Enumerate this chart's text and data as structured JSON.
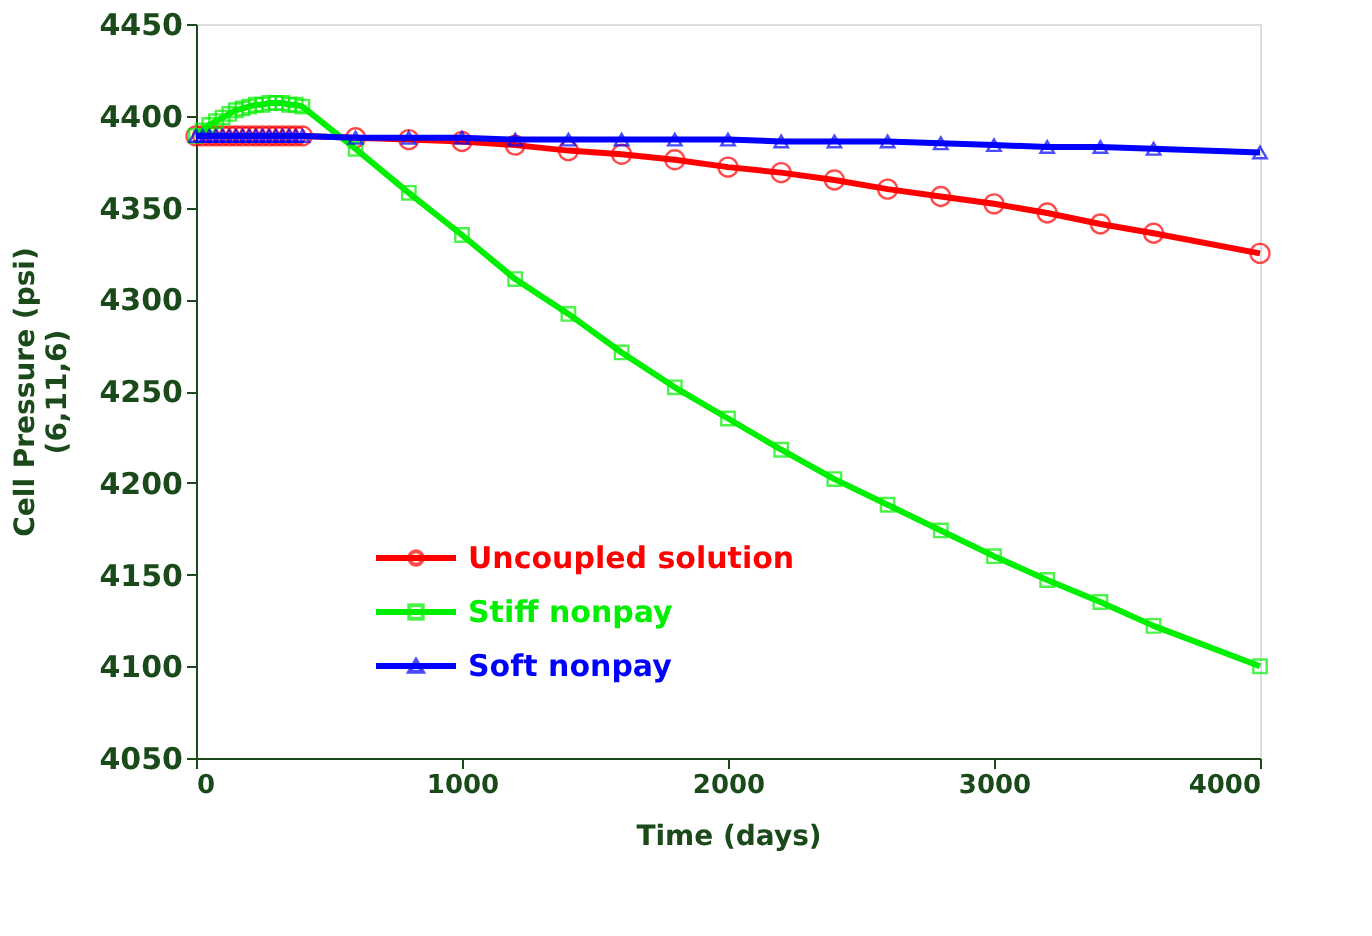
{
  "chart_data": {
    "type": "line",
    "xlabel": "Time (days)",
    "ylabel": "Cell Pressure (psi)\n(6,11,6)",
    "xlim": [
      0,
      4000
    ],
    "ylim": [
      4050,
      4450
    ],
    "xticks": [
      0,
      1000,
      2000,
      3000,
      4000
    ],
    "yticks": [
      4050,
      4100,
      4150,
      4200,
      4250,
      4300,
      4350,
      4400,
      4450
    ],
    "grid": false,
    "legend": "bottom left",
    "line_style": "solid",
    "series": [
      {
        "name": "Uncoupled solution",
        "color": "#ff0000",
        "marker": "circle",
        "x": [
          0,
          25,
          50,
          75,
          100,
          125,
          150,
          175,
          200,
          225,
          250,
          275,
          300,
          325,
          350,
          375,
          400,
          600,
          800,
          1000,
          1200,
          1400,
          1600,
          1800,
          2000,
          2200,
          2400,
          2600,
          2800,
          3000,
          3200,
          3400,
          3600,
          4000
        ],
        "values": [
          4389,
          4389,
          4389,
          4389,
          4389,
          4389,
          4389,
          4389,
          4389,
          4389,
          4389,
          4389,
          4389,
          4389,
          4389,
          4389,
          4389,
          4388,
          4387,
          4386,
          4384,
          4381,
          4379,
          4376,
          4372,
          4369,
          4365,
          4360,
          4356,
          4352,
          4347,
          4341,
          4336,
          4325
        ]
      },
      {
        "name": "Stiff nonpay",
        "color": "#00ee00",
        "marker": "square",
        "x": [
          0,
          25,
          50,
          75,
          100,
          125,
          150,
          175,
          200,
          225,
          250,
          275,
          300,
          325,
          350,
          375,
          400,
          600,
          800,
          1000,
          1200,
          1400,
          1600,
          1800,
          2000,
          2200,
          2400,
          2600,
          2800,
          3000,
          3200,
          3400,
          3600,
          4000
        ],
        "values": [
          4389,
          4392,
          4395,
          4397,
          4399,
          4401,
          4403,
          4404,
          4405,
          4406,
          4406,
          4407,
          4407,
          4407,
          4406,
          4406,
          4405,
          4382,
          4358,
          4335,
          4311,
          4292,
          4271,
          4252,
          4235,
          4218,
          4202,
          4188,
          4174,
          4160,
          4147,
          4135,
          4122,
          4100
        ]
      },
      {
        "name": "Soft nonpay",
        "color": "#0000ff",
        "marker": "triangle",
        "x": [
          0,
          25,
          50,
          75,
          100,
          125,
          150,
          175,
          200,
          225,
          250,
          275,
          300,
          325,
          350,
          375,
          400,
          600,
          800,
          1000,
          1200,
          1400,
          1600,
          1800,
          2000,
          2200,
          2400,
          2600,
          2800,
          3000,
          3200,
          3400,
          3600,
          4000
        ],
        "values": [
          4389,
          4389,
          4389,
          4389,
          4389,
          4389,
          4389,
          4389,
          4389,
          4389,
          4389,
          4389,
          4389,
          4389,
          4389,
          4389,
          4389,
          4388,
          4388,
          4388,
          4387,
          4387,
          4387,
          4387,
          4387,
          4386,
          4386,
          4386,
          4385,
          4384,
          4383,
          4383,
          4382,
          4380
        ]
      }
    ]
  }
}
